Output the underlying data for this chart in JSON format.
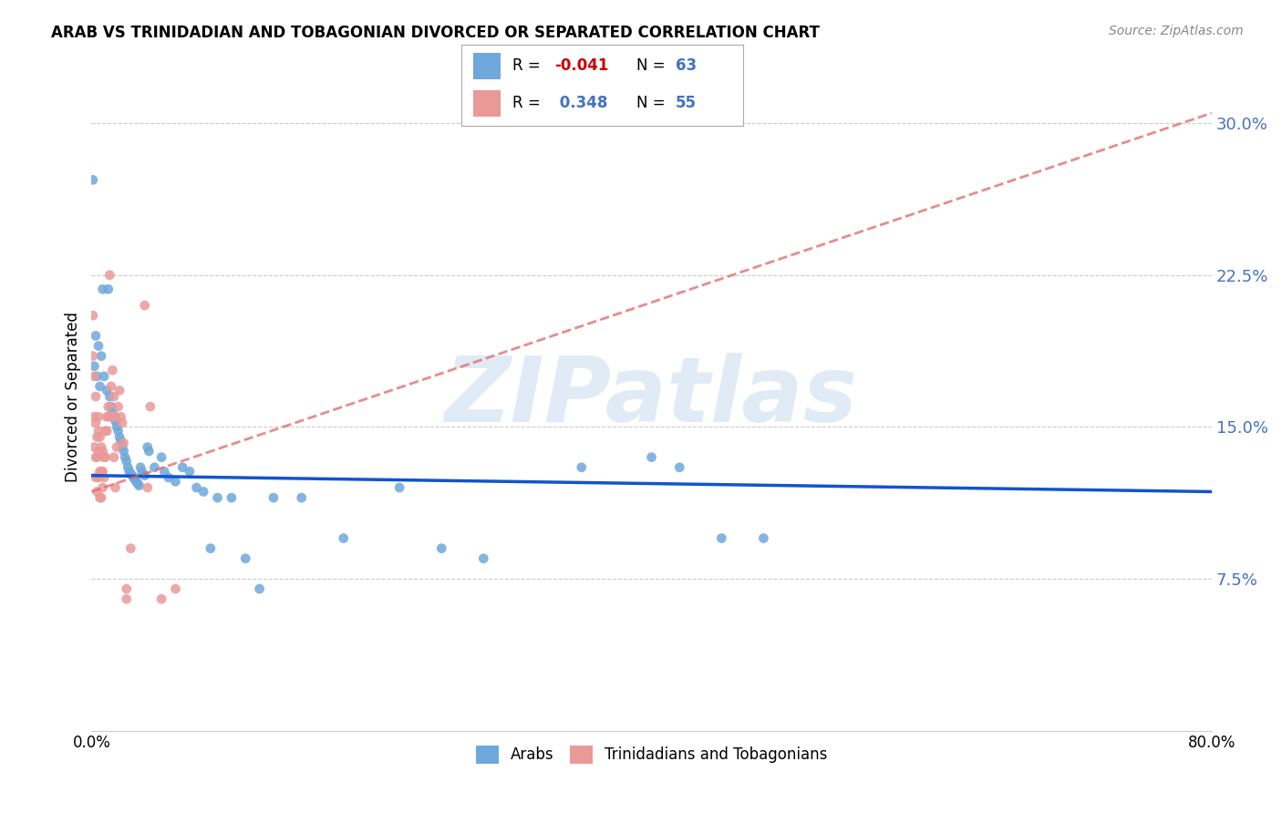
{
  "title": "ARAB VS TRINIDADIAN AND TOBAGONIAN DIVORCED OR SEPARATED CORRELATION CHART",
  "source": "Source: ZipAtlas.com",
  "ylabel": "Divorced or Separated",
  "yticks": [
    "7.5%",
    "15.0%",
    "22.5%",
    "30.0%"
  ],
  "ytick_vals": [
    0.075,
    0.15,
    0.225,
    0.3
  ],
  "xlim": [
    0.0,
    0.8
  ],
  "ylim": [
    0.0,
    0.33
  ],
  "arab_color": "#6fa8dc",
  "tnt_color": "#ea9999",
  "arab_line_color": "#1155cc",
  "tnt_line_color": "#e06666",
  "watermark": "ZIPatlas",
  "arab_line": [
    0.0,
    0.126,
    0.8,
    0.118
  ],
  "tnt_line": [
    0.0,
    0.118,
    0.8,
    0.305
  ],
  "arab_scatter": [
    [
      0.001,
      0.272
    ],
    [
      0.008,
      0.218
    ],
    [
      0.012,
      0.218
    ],
    [
      0.003,
      0.195
    ],
    [
      0.005,
      0.19
    ],
    [
      0.007,
      0.185
    ],
    [
      0.002,
      0.18
    ],
    [
      0.004,
      0.175
    ],
    [
      0.009,
      0.175
    ],
    [
      0.006,
      0.17
    ],
    [
      0.011,
      0.168
    ],
    [
      0.013,
      0.165
    ],
    [
      0.014,
      0.16
    ],
    [
      0.015,
      0.158
    ],
    [
      0.016,
      0.155
    ],
    [
      0.017,
      0.153
    ],
    [
      0.018,
      0.15
    ],
    [
      0.019,
      0.148
    ],
    [
      0.02,
      0.145
    ],
    [
      0.021,
      0.143
    ],
    [
      0.022,
      0.14
    ],
    [
      0.023,
      0.138
    ],
    [
      0.024,
      0.135
    ],
    [
      0.025,
      0.133
    ],
    [
      0.026,
      0.13
    ],
    [
      0.027,
      0.128
    ],
    [
      0.028,
      0.127
    ],
    [
      0.029,
      0.126
    ],
    [
      0.03,
      0.125
    ],
    [
      0.031,
      0.124
    ],
    [
      0.032,
      0.123
    ],
    [
      0.033,
      0.122
    ],
    [
      0.034,
      0.121
    ],
    [
      0.035,
      0.13
    ],
    [
      0.036,
      0.128
    ],
    [
      0.038,
      0.126
    ],
    [
      0.04,
      0.14
    ],
    [
      0.041,
      0.138
    ],
    [
      0.045,
      0.13
    ],
    [
      0.05,
      0.135
    ],
    [
      0.052,
      0.128
    ],
    [
      0.055,
      0.125
    ],
    [
      0.06,
      0.123
    ],
    [
      0.065,
      0.13
    ],
    [
      0.07,
      0.128
    ],
    [
      0.075,
      0.12
    ],
    [
      0.08,
      0.118
    ],
    [
      0.085,
      0.09
    ],
    [
      0.09,
      0.115
    ],
    [
      0.1,
      0.115
    ],
    [
      0.11,
      0.085
    ],
    [
      0.12,
      0.07
    ],
    [
      0.13,
      0.115
    ],
    [
      0.15,
      0.115
    ],
    [
      0.18,
      0.095
    ],
    [
      0.22,
      0.12
    ],
    [
      0.25,
      0.09
    ],
    [
      0.28,
      0.085
    ],
    [
      0.35,
      0.13
    ],
    [
      0.4,
      0.135
    ],
    [
      0.42,
      0.13
    ],
    [
      0.45,
      0.095
    ],
    [
      0.48,
      0.095
    ]
  ],
  "tnt_scatter": [
    [
      0.001,
      0.205
    ],
    [
      0.001,
      0.185
    ],
    [
      0.002,
      0.175
    ],
    [
      0.002,
      0.155
    ],
    [
      0.002,
      0.14
    ],
    [
      0.003,
      0.165
    ],
    [
      0.003,
      0.152
    ],
    [
      0.003,
      0.135
    ],
    [
      0.003,
      0.125
    ],
    [
      0.004,
      0.145
    ],
    [
      0.004,
      0.135
    ],
    [
      0.004,
      0.118
    ],
    [
      0.005,
      0.155
    ],
    [
      0.005,
      0.148
    ],
    [
      0.005,
      0.138
    ],
    [
      0.005,
      0.125
    ],
    [
      0.006,
      0.145
    ],
    [
      0.006,
      0.128
    ],
    [
      0.006,
      0.115
    ],
    [
      0.007,
      0.14
    ],
    [
      0.007,
      0.128
    ],
    [
      0.007,
      0.115
    ],
    [
      0.008,
      0.138
    ],
    [
      0.008,
      0.128
    ],
    [
      0.008,
      0.12
    ],
    [
      0.009,
      0.135
    ],
    [
      0.009,
      0.125
    ],
    [
      0.01,
      0.148
    ],
    [
      0.01,
      0.135
    ],
    [
      0.011,
      0.155
    ],
    [
      0.011,
      0.148
    ],
    [
      0.012,
      0.16
    ],
    [
      0.012,
      0.155
    ],
    [
      0.013,
      0.225
    ],
    [
      0.014,
      0.17
    ],
    [
      0.015,
      0.178
    ],
    [
      0.015,
      0.155
    ],
    [
      0.016,
      0.165
    ],
    [
      0.016,
      0.135
    ],
    [
      0.017,
      0.155
    ],
    [
      0.017,
      0.12
    ],
    [
      0.018,
      0.14
    ],
    [
      0.019,
      0.16
    ],
    [
      0.02,
      0.168
    ],
    [
      0.021,
      0.155
    ],
    [
      0.022,
      0.152
    ],
    [
      0.023,
      0.142
    ],
    [
      0.025,
      0.07
    ],
    [
      0.025,
      0.065
    ],
    [
      0.028,
      0.09
    ],
    [
      0.038,
      0.21
    ],
    [
      0.04,
      0.12
    ],
    [
      0.042,
      0.16
    ],
    [
      0.05,
      0.065
    ],
    [
      0.06,
      0.07
    ]
  ]
}
